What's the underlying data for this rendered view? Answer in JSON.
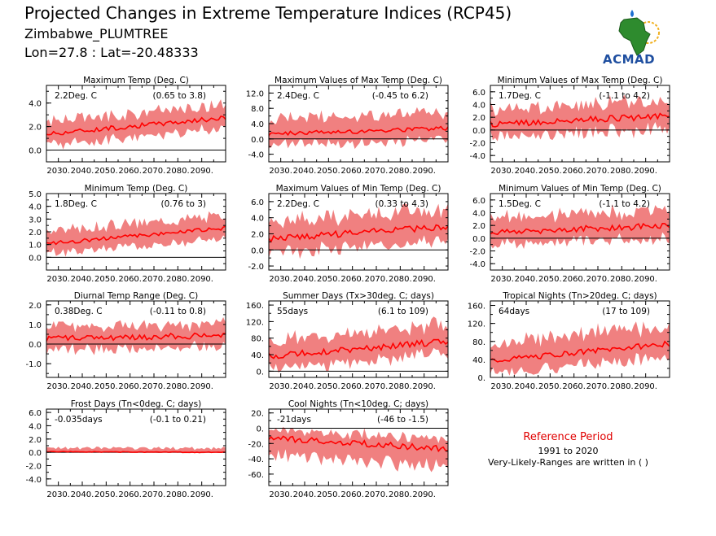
{
  "header": {
    "title": "Projected Changes in Extreme Temperature Indices (RCP45)",
    "station": "Zimbabwe_PLUMTREE",
    "coords": "Lon=27.8 : Lat=-20.48333"
  },
  "logo": {
    "text": "ACMAD"
  },
  "reference": {
    "title": "Reference Period",
    "years": "1991 to 2020",
    "note": "Very-Likely-Ranges are written in ( )"
  },
  "colors": {
    "band": "#f08080",
    "line": "#ff0000",
    "zero": "#000000"
  },
  "x_tick_labels": [
    "2030.",
    "2040.",
    "2050.",
    "2060.",
    "2070.",
    "2080.",
    "2090."
  ],
  "chart_data": [
    {
      "type": "area",
      "title": "Maximum Temp (Deg. C)",
      "mean_label": "2.2Deg. C",
      "range_label": "(0.65 to 3.8)",
      "x_range": [
        2025,
        2100
      ],
      "ylim": [
        -1.0,
        5.5
      ],
      "yticks": [
        0,
        2,
        4
      ],
      "ytick_labels": [
        "0.0",
        "2.0",
        "4.0"
      ],
      "start": 1.3,
      "end": 2.75,
      "noise": 0.2,
      "band_lo": 0.9,
      "band_hi": 1.1
    },
    {
      "type": "area",
      "title": "Maximum Values of Max Temp (Deg. C)",
      "mean_label": "2.4Deg. C",
      "range_label": "(-0.45 to 6.2)",
      "x_range": [
        2025,
        2100
      ],
      "ylim": [
        -6,
        14
      ],
      "yticks": [
        -4,
        0,
        4,
        8,
        12
      ],
      "ytick_labels": [
        "-4.0",
        "0.0",
        "4.0",
        "8.0",
        "12.0"
      ],
      "start": 1.2,
      "end": 2.8,
      "noise": 0.6,
      "band_lo": 3.0,
      "band_hi": 4.0
    },
    {
      "type": "area",
      "title": "Minimum Values of Max Temp (Deg. C)",
      "mean_label": "1.7Deg. C",
      "range_label": "(-1.1 to 4.2)",
      "x_range": [
        2025,
        2100
      ],
      "ylim": [
        -5,
        7
      ],
      "yticks": [
        -4,
        -2,
        0,
        2,
        4,
        6
      ],
      "ytick_labels": [
        "-4.0",
        "-2.0",
        "0.0",
        "2.0",
        "4.0",
        "6.0"
      ],
      "start": 0.8,
      "end": 2.2,
      "noise": 0.5,
      "band_lo": 2.0,
      "band_hi": 2.4
    },
    {
      "type": "area",
      "title": "Minimum Temp (Deg. C)",
      "mean_label": "1.8Deg. C",
      "range_label": "(0.76 to 3)",
      "x_range": [
        2025,
        2100
      ],
      "ylim": [
        -1.0,
        5.0
      ],
      "yticks": [
        0,
        1,
        2,
        3,
        4,
        5
      ],
      "ytick_labels": [
        "0.0",
        "1.0",
        "2.0",
        "3.0",
        "4.0",
        "5.0"
      ],
      "start": 1.0,
      "end": 2.3,
      "noise": 0.15,
      "band_lo": 0.8,
      "band_hi": 1.0
    },
    {
      "type": "area",
      "title": "Maximum Values of Min Temp (Deg. C)",
      "mean_label": "2.2Deg. C",
      "range_label": "(0.33 to 4.3)",
      "x_range": [
        2025,
        2100
      ],
      "ylim": [
        -2.5,
        7
      ],
      "yticks": [
        -2,
        0,
        2,
        4,
        6
      ],
      "ytick_labels": [
        "-2.0",
        "0.0",
        "2.0",
        "4.0",
        "6.0"
      ],
      "start": 1.3,
      "end": 2.9,
      "noise": 0.4,
      "band_lo": 1.8,
      "band_hi": 2.2
    },
    {
      "type": "area",
      "title": "Minimum Values of Min Temp (Deg. C)",
      "mean_label": "1.5Deg. C",
      "range_label": "(-1.1 to 4.2)",
      "x_range": [
        2025,
        2100
      ],
      "ylim": [
        -5,
        7
      ],
      "yticks": [
        -4,
        -2,
        0,
        2,
        4,
        6
      ],
      "ytick_labels": [
        "-4.0",
        "-2.0",
        "0.0",
        "2.0",
        "4.0",
        "6.0"
      ],
      "start": 0.8,
      "end": 2.0,
      "noise": 0.5,
      "band_lo": 2.0,
      "band_hi": 2.4
    },
    {
      "type": "area",
      "title": "Diurnal Temp Range (Deg. C)",
      "mean_label": "0.38Deg. C",
      "range_label": "(-0.11 to 0.8)",
      "x_range": [
        2025,
        2100
      ],
      "ylim": [
        -1.7,
        2.2
      ],
      "yticks": [
        -1,
        0,
        1,
        2
      ],
      "ytick_labels": [
        "-1.0",
        "0.0",
        "1.0",
        "2.0"
      ],
      "start": 0.25,
      "end": 0.45,
      "noise": 0.15,
      "band_lo": 0.6,
      "band_hi": 0.6
    },
    {
      "type": "area",
      "title": "Summer Days (Tx>30deg. C; days)",
      "mean_label": "55days",
      "range_label": "(6.1 to 109)",
      "x_range": [
        2025,
        2100
      ],
      "ylim": [
        -15,
        170
      ],
      "yticks": [
        0,
        40,
        80,
        120,
        160
      ],
      "ytick_labels": [
        "0.",
        "40.",
        "80.",
        "120.",
        "160."
      ],
      "start": 35,
      "end": 72,
      "noise": 8,
      "band_lo": 30,
      "band_hi": 40
    },
    {
      "type": "area",
      "title": "Tropical Nights (Tn>20deg. C; days)",
      "mean_label": "64days",
      "range_label": "(17 to 109)",
      "x_range": [
        2025,
        2100
      ],
      "ylim": [
        0,
        170
      ],
      "yticks": [
        0,
        40,
        80,
        120,
        160
      ],
      "ytick_labels": [
        "0.",
        "40.",
        "80.",
        "120.",
        "160."
      ],
      "start": 35,
      "end": 75,
      "noise": 6,
      "band_lo": 30,
      "band_hi": 40
    },
    {
      "type": "area",
      "title": "Frost Days (Tn<0deg. C; days)",
      "mean_label": "-0.035days",
      "range_label": "(-0.1 to 0.21)",
      "x_range": [
        2025,
        2100
      ],
      "ylim": [
        -5,
        6.5
      ],
      "yticks": [
        -4,
        -2,
        0,
        2,
        4,
        6
      ],
      "ytick_labels": [
        "-4.0",
        "-2.0",
        "0.0",
        "2.0",
        "4.0",
        "6.0"
      ],
      "start": 0.1,
      "end": 0.0,
      "noise": 0.05,
      "band_lo": 0.1,
      "band_hi": 0.6
    },
    {
      "type": "area",
      "title": "Cool Nights (Tn<10deg. C; days)",
      "mean_label": "-21days",
      "range_label": "(-46 to -1.5)",
      "x_range": [
        2025,
        2100
      ],
      "ylim": [
        -75,
        25
      ],
      "yticks": [
        -60,
        -40,
        -20,
        0,
        20
      ],
      "ytick_labels": [
        "-60.",
        "-40.",
        "-20.",
        "0.",
        "20."
      ],
      "start": -12,
      "end": -27,
      "noise": 4,
      "band_lo": 22,
      "band_hi": 12
    }
  ]
}
